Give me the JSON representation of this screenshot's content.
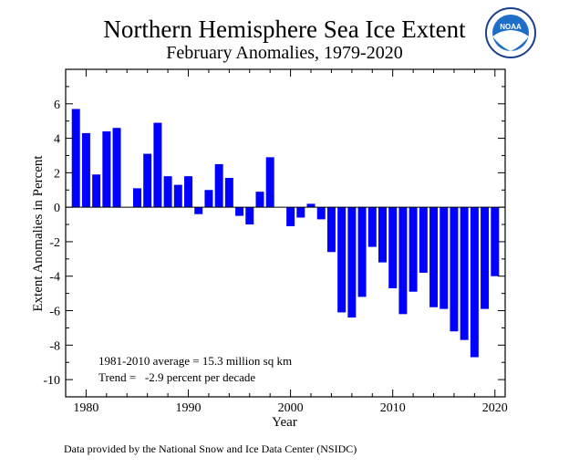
{
  "chart_data": {
    "type": "bar",
    "title": "Northern Hemisphere Sea Ice Extent",
    "subtitle": "February Anomalies, 1979-2020",
    "xlabel": "Year",
    "ylabel": "Extent Anomalies in Percent",
    "xlim": [
      1978,
      2021
    ],
    "ylim": [
      -11,
      8
    ],
    "xticks": [
      1980,
      1990,
      2000,
      2010,
      2020
    ],
    "yticks": [
      -10,
      -8,
      -6,
      -4,
      -2,
      0,
      2,
      4,
      6
    ],
    "bar_color": "#0000ff",
    "years": [
      1979,
      1980,
      1981,
      1982,
      1983,
      1984,
      1985,
      1986,
      1987,
      1988,
      1989,
      1990,
      1991,
      1992,
      1993,
      1994,
      1995,
      1996,
      1997,
      1998,
      1999,
      2000,
      2001,
      2002,
      2003,
      2004,
      2005,
      2006,
      2007,
      2008,
      2009,
      2010,
      2011,
      2012,
      2013,
      2014,
      2015,
      2016,
      2017,
      2018,
      2019,
      2020
    ],
    "values": [
      5.7,
      4.3,
      1.9,
      4.4,
      4.6,
      0.0,
      1.1,
      3.1,
      4.9,
      1.8,
      1.3,
      1.8,
      -0.4,
      1.0,
      2.5,
      1.7,
      -0.5,
      -1.0,
      0.9,
      2.9,
      0.0,
      -1.1,
      -0.6,
      0.2,
      -0.7,
      -2.6,
      -6.1,
      -6.4,
      -5.2,
      -2.3,
      -3.2,
      -4.7,
      -6.2,
      -4.9,
      -3.8,
      -5.8,
      -5.9,
      -7.2,
      -7.7,
      -8.7,
      -5.9,
      -4.0
    ],
    "annotations": [
      "1981-2010 average = 15.3 million sq km",
      "Trend =   -2.9 percent per decade"
    ]
  },
  "footer": {
    "credit": "Data provided by the National Snow and Ice Data Center (NSIDC)"
  },
  "logo": {
    "text": "NOAA"
  }
}
